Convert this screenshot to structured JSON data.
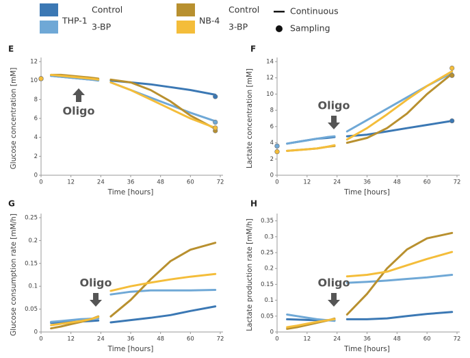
{
  "legend": {
    "groups": [
      {
        "label": "THP-1",
        "items": [
          {
            "label": "Control",
            "color": "#3b78b4"
          },
          {
            "label": "3-BP",
            "color": "#6fa8d6"
          }
        ]
      },
      {
        "label": "NB-4",
        "items": [
          {
            "label": "Control",
            "color": "#b8902f"
          },
          {
            "label": "3-BP",
            "color": "#f4bd3a"
          }
        ]
      }
    ],
    "styles": [
      "Continuous",
      "Sampling"
    ]
  },
  "chart_data": [
    {
      "type": "line",
      "label": "E",
      "annotation": "Oligo",
      "xlabel": "Time [hours]",
      "ylabel": "Glucose concentration [mM]",
      "x": [
        4,
        8,
        12,
        16,
        20,
        23,
        25,
        28,
        36,
        44,
        52,
        60,
        70
      ],
      "xlim": [
        0,
        72
      ],
      "xticks": [
        0,
        12,
        24,
        36,
        48,
        60,
        72
      ],
      "ylim": [
        0,
        12
      ],
      "yticks": [
        0,
        2,
        4,
        6,
        8,
        10,
        12
      ],
      "series": [
        {
          "color": "#3b78b4",
          "values": [
            10.5,
            10.4,
            10.3,
            10.2,
            10.1,
            10.1,
            null,
            10.0,
            9.8,
            9.6,
            9.3,
            9.0,
            8.5
          ],
          "sampling": {
            "x": [
              0,
              70
            ],
            "values": [
              10.2,
              8.3
            ]
          }
        },
        {
          "color": "#6fa8d6",
          "values": [
            10.5,
            10.4,
            10.3,
            10.2,
            10.1,
            10.0,
            null,
            9.8,
            9.0,
            8.2,
            7.4,
            6.6,
            5.7
          ],
          "sampling": {
            "x": [
              0,
              70
            ],
            "values": [
              10.2,
              5.6
            ]
          }
        },
        {
          "color": "#b8902f",
          "values": [
            10.6,
            10.6,
            10.5,
            10.4,
            10.3,
            10.2,
            null,
            10.1,
            9.8,
            9.0,
            7.8,
            6.3,
            4.9
          ],
          "sampling": {
            "x": [
              0,
              70
            ],
            "values": [
              10.2,
              4.7
            ]
          }
        },
        {
          "color": "#f4bd3a",
          "values": [
            10.6,
            10.5,
            10.4,
            10.3,
            10.2,
            10.1,
            null,
            9.8,
            9.0,
            8.0,
            7.0,
            6.0,
            5.0
          ],
          "sampling": {
            "x": [
              0,
              70
            ],
            "values": [
              10.2,
              5.0
            ]
          }
        }
      ]
    },
    {
      "type": "line",
      "label": "F",
      "annotation": "Oligo",
      "xlabel": "Time [hours]",
      "ylabel": "Lactate concentration [mM]",
      "x": [
        4,
        8,
        12,
        16,
        20,
        23,
        25,
        28,
        36,
        44,
        52,
        60,
        70
      ],
      "xlim": [
        0,
        72
      ],
      "xticks": [
        0,
        12,
        24,
        36,
        48,
        60,
        72
      ],
      "ylim": [
        0,
        14
      ],
      "yticks": [
        0,
        2,
        4,
        6,
        8,
        10,
        12,
        14
      ],
      "series": [
        {
          "color": "#3b78b4",
          "values": [
            3.9,
            4.1,
            4.3,
            4.5,
            4.6,
            4.7,
            null,
            4.8,
            5.0,
            5.4,
            5.8,
            6.2,
            6.7
          ],
          "sampling": {
            "x": [
              0,
              70
            ],
            "values": [
              3.6,
              6.7
            ]
          }
        },
        {
          "color": "#6fa8d6",
          "values": [
            3.9,
            4.1,
            4.3,
            4.5,
            4.7,
            4.8,
            null,
            5.4,
            6.8,
            8.2,
            9.6,
            11.0,
            12.6
          ],
          "sampling": {
            "x": [
              0,
              70
            ],
            "values": [
              3.6,
              12.3
            ]
          }
        },
        {
          "color": "#b8902f",
          "values": [
            3.0,
            3.1,
            3.2,
            3.3,
            3.5,
            3.6,
            null,
            4.0,
            4.6,
            5.8,
            7.6,
            10.0,
            12.5
          ],
          "sampling": {
            "x": [
              0,
              70
            ],
            "values": [
              2.9,
              12.3
            ]
          }
        },
        {
          "color": "#f4bd3a",
          "values": [
            3.0,
            3.1,
            3.2,
            3.3,
            3.5,
            3.7,
            null,
            4.4,
            5.8,
            7.5,
            9.3,
            11.0,
            12.8
          ],
          "sampling": {
            "x": [
              0,
              70
            ],
            "values": [
              2.9,
              13.2
            ]
          }
        }
      ]
    },
    {
      "type": "line",
      "label": "G",
      "annotation": "Oligo",
      "xlabel": "Time [hours]",
      "ylabel": "Glucose consumption rate [mM/h]",
      "x": [
        4,
        8,
        12,
        16,
        20,
        23,
        25,
        28,
        36,
        44,
        52,
        60,
        70
      ],
      "xlim": [
        0,
        72
      ],
      "xticks": [
        0,
        12,
        24,
        36,
        48,
        60,
        72
      ],
      "ylim": [
        0,
        0.25
      ],
      "yticks": [
        0,
        0.05,
        0.1,
        0.15,
        0.2,
        0.25
      ],
      "series": [
        {
          "color": "#3b78b4",
          "values": [
            0.02,
            0.021,
            0.022,
            0.023,
            0.024,
            0.025,
            null,
            0.021,
            0.026,
            0.031,
            0.037,
            0.046,
            0.056
          ]
        },
        {
          "color": "#6fa8d6",
          "values": [
            0.022,
            0.024,
            0.026,
            0.028,
            0.029,
            0.03,
            null,
            0.082,
            0.088,
            0.091,
            0.091,
            0.091,
            0.092
          ]
        },
        {
          "color": "#b8902f",
          "values": [
            0.008,
            0.012,
            0.017,
            0.022,
            0.028,
            0.034,
            null,
            0.034,
            0.07,
            0.115,
            0.155,
            0.18,
            0.195
          ]
        },
        {
          "color": "#f4bd3a",
          "values": [
            0.015,
            0.018,
            0.021,
            0.024,
            0.028,
            0.033,
            null,
            0.09,
            0.1,
            0.108,
            0.115,
            0.121,
            0.127
          ]
        }
      ]
    },
    {
      "type": "line",
      "label": "H",
      "annotation": "Oligo",
      "xlabel": "Time [hours]",
      "ylabel": "Lactate production rate [mM/h]",
      "x": [
        4,
        8,
        12,
        16,
        20,
        23,
        25,
        28,
        36,
        44,
        52,
        60,
        70
      ],
      "xlim": [
        0,
        72
      ],
      "xticks": [
        0,
        12,
        24,
        36,
        48,
        60,
        72
      ],
      "ylim": [
        0,
        0.36
      ],
      "yticks": [
        0,
        0.05,
        0.1,
        0.15,
        0.2,
        0.25,
        0.3,
        0.35
      ],
      "series": [
        {
          "color": "#3b78b4",
          "values": [
            0.04,
            0.039,
            0.038,
            0.037,
            0.037,
            0.037,
            null,
            0.04,
            0.04,
            0.043,
            0.05,
            0.057,
            0.063
          ]
        },
        {
          "color": "#6fa8d6",
          "values": [
            0.055,
            0.05,
            0.045,
            0.04,
            0.037,
            0.035,
            null,
            0.155,
            0.158,
            0.162,
            0.167,
            0.172,
            0.18
          ]
        },
        {
          "color": "#b8902f",
          "values": [
            0.01,
            0.015,
            0.022,
            0.029,
            0.036,
            0.042,
            null,
            0.055,
            0.12,
            0.2,
            0.26,
            0.295,
            0.312
          ]
        },
        {
          "color": "#f4bd3a",
          "values": [
            0.015,
            0.02,
            0.026,
            0.032,
            0.037,
            0.04,
            null,
            0.175,
            0.18,
            0.19,
            0.21,
            0.23,
            0.252
          ]
        }
      ]
    }
  ]
}
